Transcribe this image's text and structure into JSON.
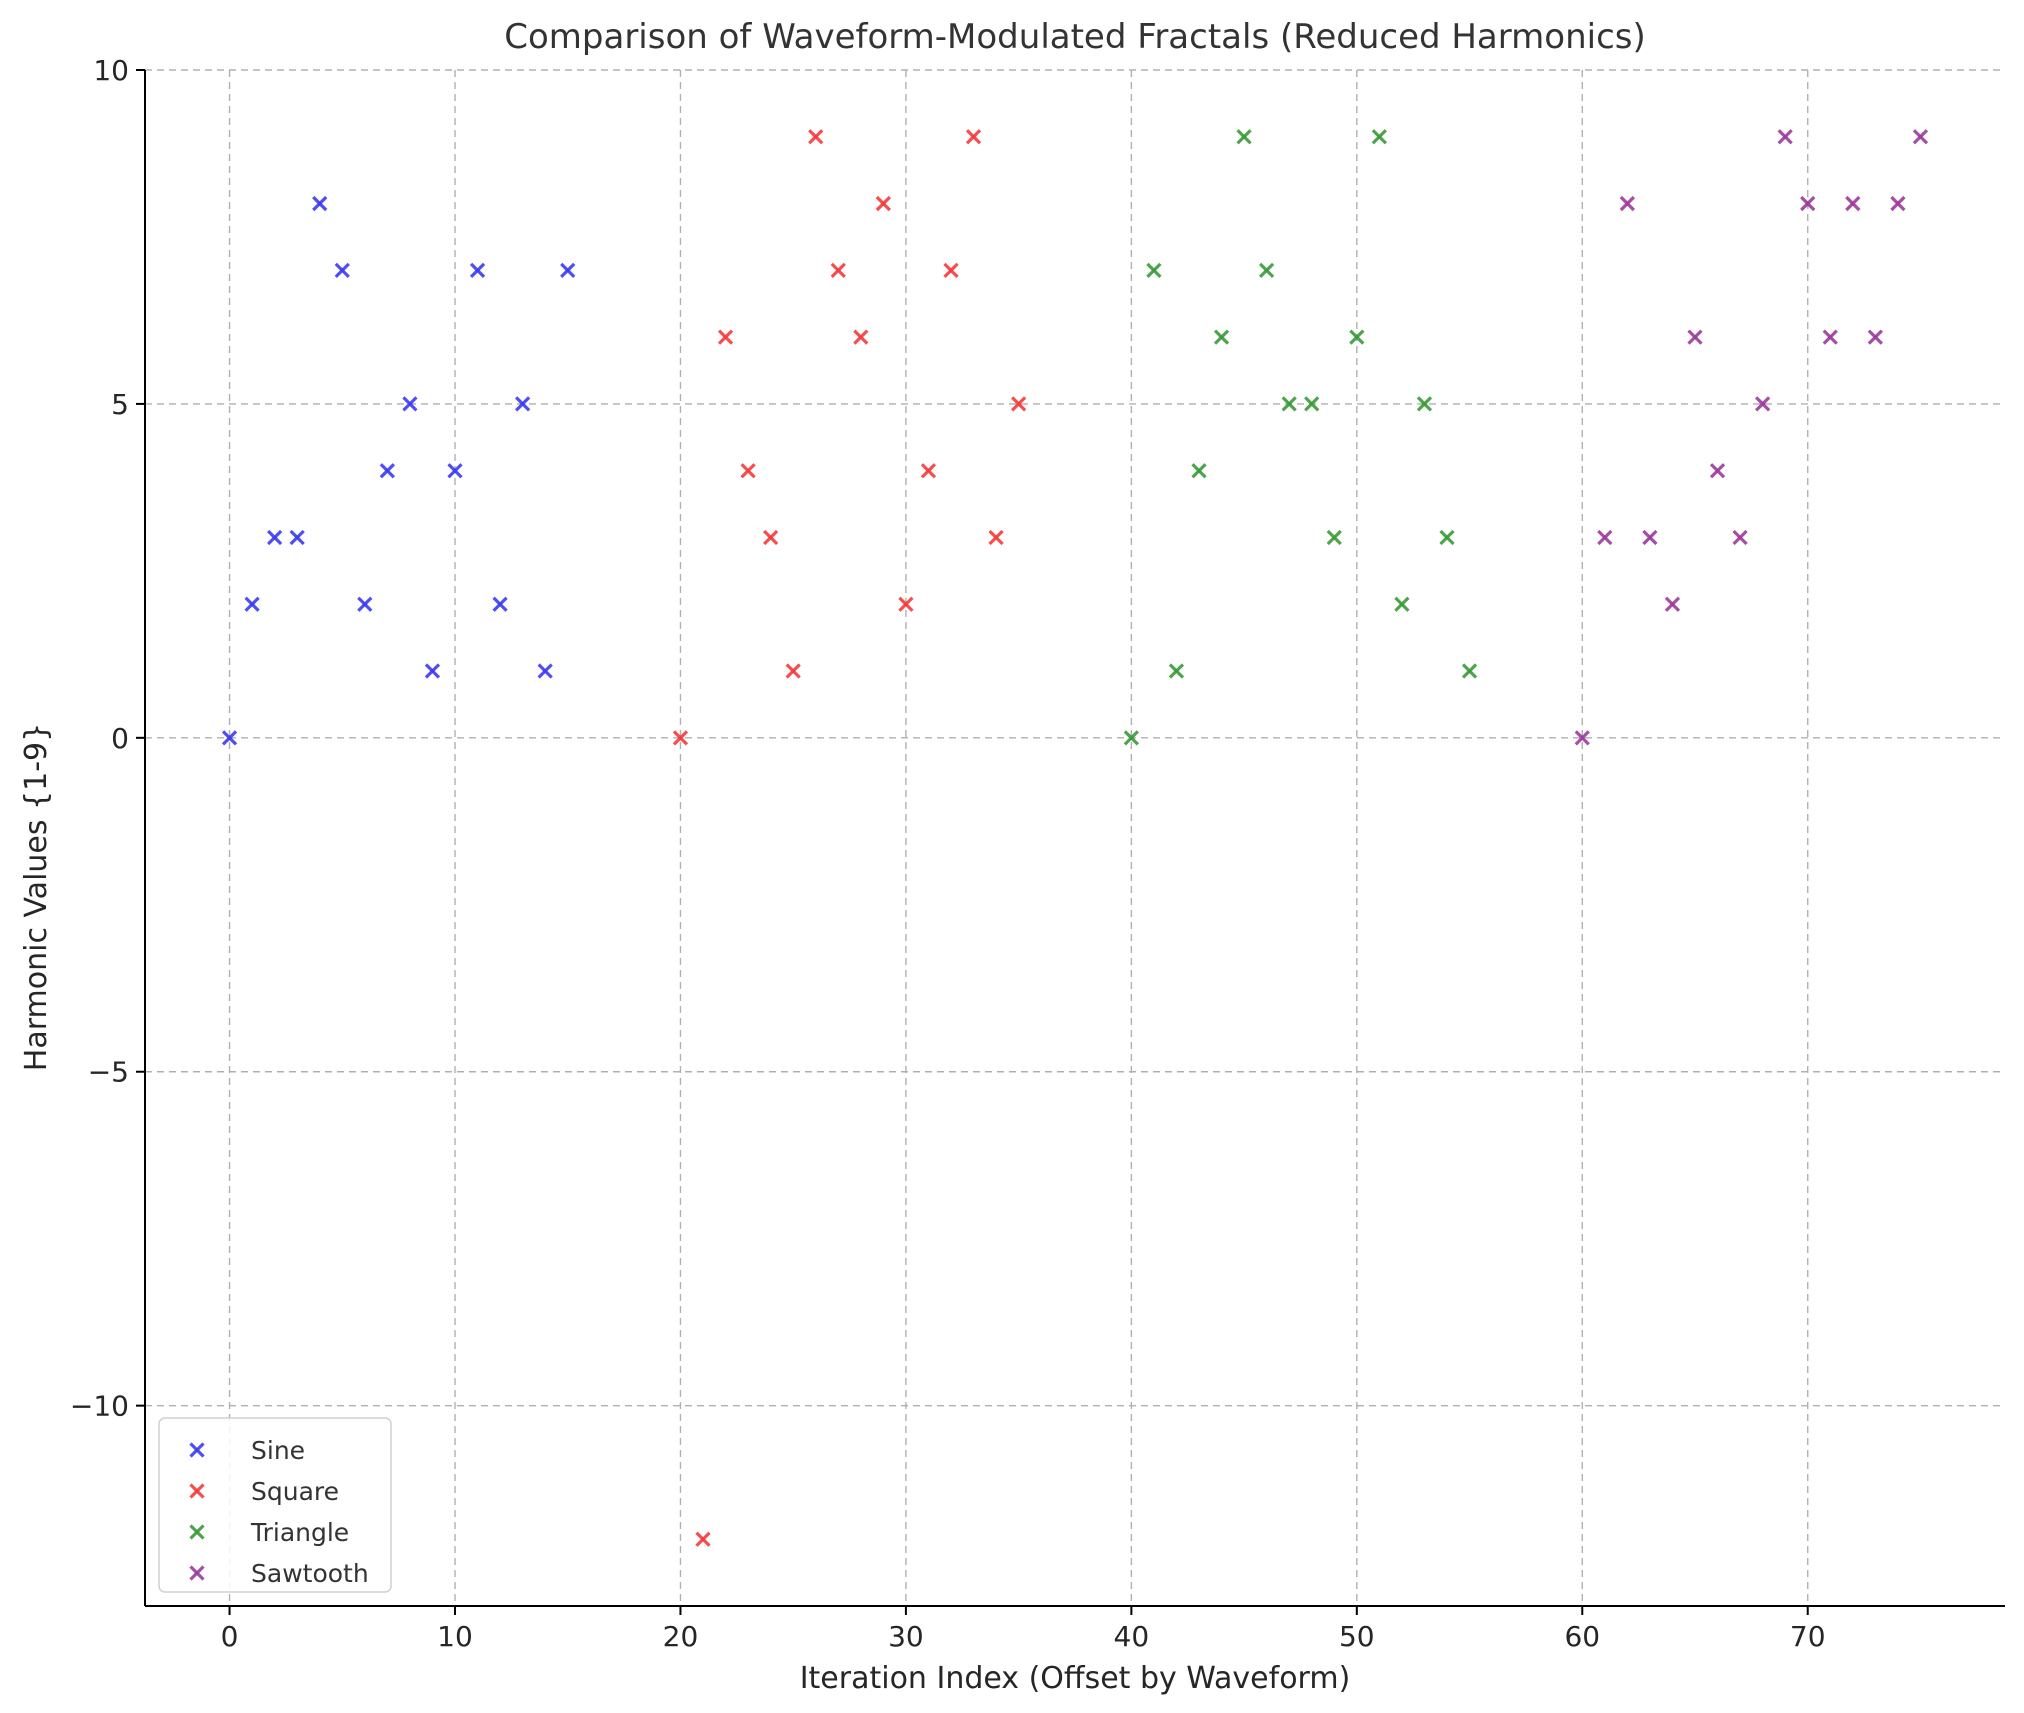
{
  "chart_data": {
    "type": "scatter",
    "title": "Comparison of Waveform-Modulated Fractals (Reduced Harmonics)",
    "xlabel": "Iteration Index (Offset by Waveform)",
    "ylabel": "Harmonic Values {1-9}",
    "xlim": [
      -3.75,
      78.75
    ],
    "ylim": [
      -13,
      10
    ],
    "xticks": [
      0,
      10,
      20,
      30,
      40,
      50,
      60,
      70
    ],
    "yticks": [
      -10,
      -5,
      0,
      5,
      10
    ],
    "ytick_labels": [
      "−10",
      "−5",
      "0",
      "5",
      "10"
    ],
    "grid": true,
    "marker": "x",
    "legend_position": "lower-left",
    "series": [
      {
        "name": "Sine",
        "color": "#3b3bf5",
        "x": [
          0,
          1,
          2,
          3,
          4,
          5,
          6,
          7,
          8,
          9,
          10,
          11,
          12,
          13,
          14,
          15
        ],
        "y": [
          0,
          2,
          3,
          3,
          8,
          7,
          2,
          4,
          5,
          1,
          4,
          7,
          2,
          5,
          1,
          7
        ]
      },
      {
        "name": "Square",
        "color": "#f53b3b",
        "x": [
          20,
          21,
          22,
          23,
          24,
          25,
          26,
          27,
          28,
          29,
          30,
          31,
          32,
          33,
          34,
          35
        ],
        "y": [
          0,
          -12,
          6,
          4,
          3,
          1,
          9,
          7,
          6,
          8,
          2,
          4,
          7,
          9,
          3,
          5
        ]
      },
      {
        "name": "Triangle",
        "color": "#3a9a3a",
        "x": [
          40,
          41,
          42,
          43,
          44,
          45,
          46,
          47,
          48,
          49,
          50,
          51,
          52,
          53,
          54,
          55
        ],
        "y": [
          0,
          7,
          1,
          4,
          6,
          9,
          7,
          5,
          5,
          3,
          6,
          9,
          2,
          5,
          3,
          1
        ]
      },
      {
        "name": "Sawtooth",
        "color": "#9b3b9b",
        "x": [
          60,
          61,
          62,
          63,
          64,
          65,
          66,
          67,
          68,
          69,
          70,
          71,
          72,
          73,
          74,
          75
        ],
        "y": [
          0,
          3,
          8,
          3,
          2,
          6,
          4,
          3,
          5,
          9,
          8,
          6,
          8,
          6,
          8,
          9
        ]
      }
    ]
  }
}
